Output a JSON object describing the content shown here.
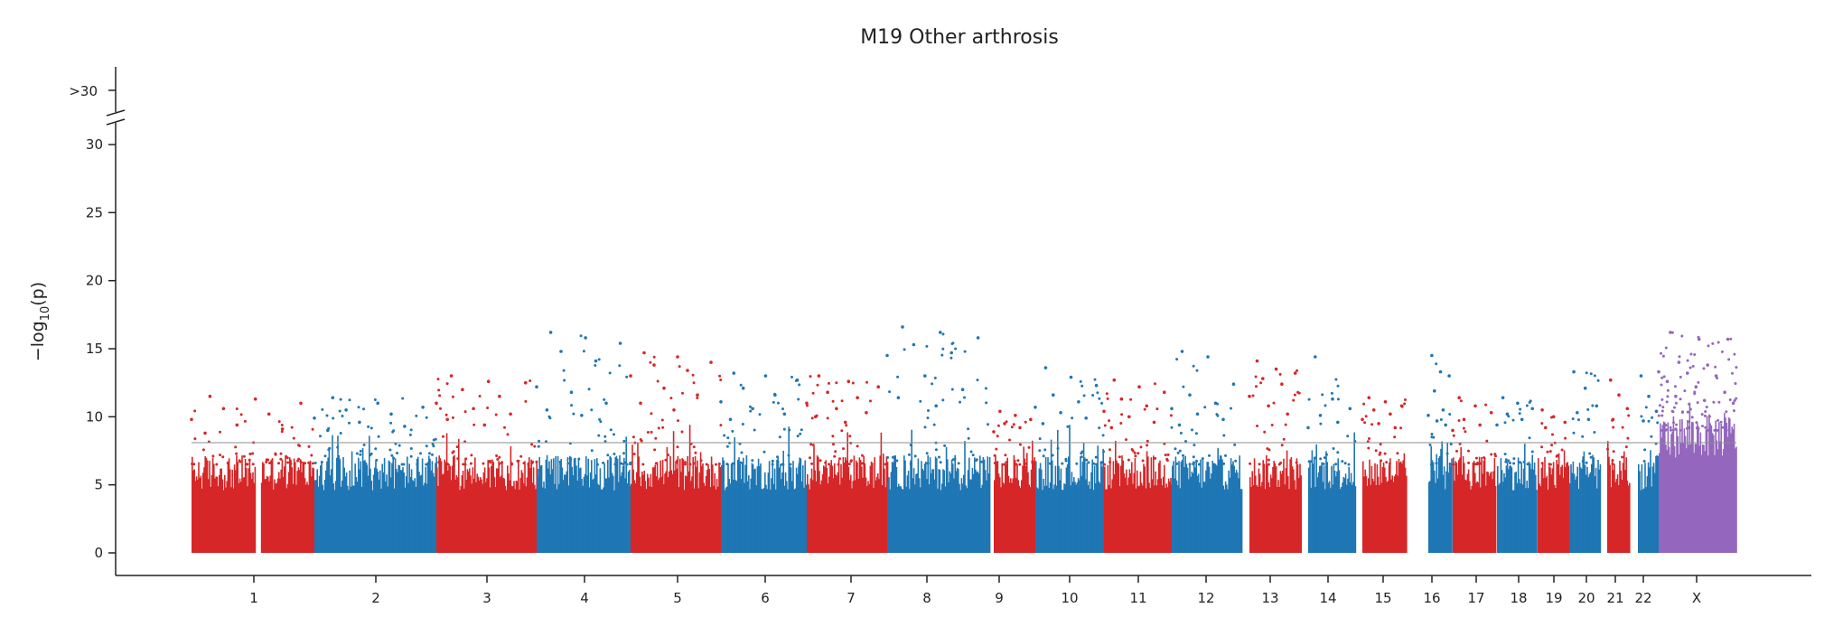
{
  "chart_data": {
    "type": "scatter",
    "subtype": "manhattan",
    "title": "M19 Other arthrosis",
    "xlabel": "",
    "ylabel_main": "−log",
    "ylabel_sub": "10",
    "ylabel_end": "(p)",
    "ylim": [
      0,
      30
    ],
    "yticks": [
      "0",
      "5",
      "10",
      "15",
      "20",
      "25",
      "30"
    ],
    "broken_axis_label": ">30",
    "significance_threshold": 7.3,
    "colors": {
      "odd": "#d62728",
      "even": "#1f77b4",
      "X": "#9467bd",
      "threshold": "#8c8c8c"
    },
    "chromosomes": [
      {
        "label": "1",
        "start": 0.0,
        "end": 4.1,
        "color": "#d62728",
        "peak": 11.5,
        "hits": [
          11.5,
          11.3,
          11.0,
          10.6,
          10.2,
          9.8,
          9.4,
          9.1,
          8.8
        ]
      },
      {
        "label": "2",
        "start": 4.5,
        "end": 8.0,
        "color": "#1f77b4",
        "peak": 11.4,
        "hits": [
          11.4,
          11.0,
          10.7,
          10.5,
          10.2,
          9.9,
          9.6,
          9.3,
          9.0
        ]
      },
      {
        "label": "3",
        "start": 8.0,
        "end": 14.4,
        "color": "#d62728",
        "peak": 13.0,
        "hits": [
          13.0,
          12.6,
          12.5,
          12.0,
          11.5,
          11.0,
          10.6,
          10.2,
          9.8,
          9.4
        ]
      },
      {
        "label": "4",
        "start": 14.4,
        "end": 20.5,
        "color": "#1f77b4",
        "peak": 16.2,
        "hits": [
          16.2,
          15.8,
          15.4,
          14.8,
          14.1,
          12.2,
          11.8,
          11.0,
          10.5,
          10.1
        ]
      },
      {
        "label": "5",
        "start": 20.5,
        "end": 26.4,
        "color": "#d62728",
        "peak": 14.7,
        "hits": [
          14.7,
          14.4,
          14.0,
          13.8,
          13.4,
          13.0,
          12.1,
          11.6,
          11.0,
          10.5
        ]
      },
      {
        "label": "6",
        "start": 26.4,
        "end": 32.0,
        "color": "#1f77b4",
        "peak": 13.2,
        "hits": [
          13.2,
          13.0,
          12.7,
          12.1,
          11.6,
          11.1,
          10.6,
          10.2,
          9.8
        ]
      },
      {
        "label": "7",
        "start": 32.0,
        "end": 37.2,
        "color": "#d62728",
        "peak": 13.0,
        "hits": [
          13.0,
          12.6,
          12.2,
          11.8,
          11.4,
          11.0,
          10.6,
          10.3,
          10.0,
          9.6
        ]
      },
      {
        "label": "8",
        "start": 37.2,
        "end": 47.0,
        "color": "#1f77b4",
        "peak": 16.6,
        "hits": [
          16.6,
          16.2,
          15.8,
          15.3,
          14.7,
          14.5,
          13.0,
          12.0,
          11.4,
          10.8
        ]
      },
      {
        "label": "9",
        "start": 47.0,
        "end": 47.0,
        "color": "#d62728",
        "peak": 10.4,
        "hits": [
          10.4,
          10.1,
          9.8,
          9.5,
          9.2,
          8.9
        ]
      },
      {
        "label": "10",
        "start": 47.0,
        "end": 47.0,
        "color": "#1f77b4",
        "peak": 13.6,
        "hits": [
          13.6,
          12.9,
          12.3,
          11.6,
          11.1,
          10.7,
          10.3,
          9.9,
          9.5
        ]
      },
      {
        "label": "11",
        "start": 47.0,
        "end": 47.0,
        "color": "#d62728",
        "peak": 12.7,
        "hits": [
          12.7,
          12.2,
          11.8,
          11.3,
          10.8,
          10.4,
          10.0,
          9.6,
          9.2
        ]
      },
      {
        "label": "12",
        "start": 47.0,
        "end": 47.0,
        "color": "#1f77b4",
        "peak": 14.8,
        "hits": [
          14.8,
          14.4,
          12.4,
          11.6,
          11.0,
          10.6,
          10.2,
          9.8,
          9.4
        ]
      },
      {
        "label": "13",
        "start": 47.0,
        "end": 47.0,
        "color": "#d62728",
        "peak": 14.1,
        "hits": [
          14.1,
          13.5,
          13.2,
          12.8,
          12.4,
          11.5,
          10.8,
          10.2
        ]
      },
      {
        "label": "14",
        "start": 47.0,
        "end": 47.0,
        "color": "#1f77b4",
        "peak": 14.4,
        "hits": [
          14.4,
          11.3,
          10.6,
          10.1,
          9.6,
          9.2
        ]
      },
      {
        "label": "15",
        "start": 47.0,
        "end": 47.0,
        "color": "#d62728",
        "peak": 11.4,
        "hits": [
          11.4,
          11.1,
          10.8,
          10.5,
          10.2,
          9.8,
          9.5,
          9.2
        ]
      },
      {
        "label": "16",
        "start": 47.0,
        "end": 47.0,
        "color": "#1f77b4",
        "peak": 14.5,
        "hits": [
          14.5,
          13.3,
          13.0,
          11.9,
          10.5,
          10.1,
          9.7,
          9.4
        ]
      },
      {
        "label": "17",
        "start": 47.0,
        "end": 47.0,
        "color": "#d62728",
        "peak": 11.4,
        "hits": [
          11.4,
          10.8,
          10.3,
          9.8,
          9.4,
          9.0
        ]
      },
      {
        "label": "18",
        "start": 47.0,
        "end": 47.0,
        "color": "#1f77b4",
        "peak": 11.4,
        "hits": [
          11.4,
          11.0,
          10.6,
          10.2,
          9.8,
          9.4
        ]
      },
      {
        "label": "19",
        "start": 47.0,
        "end": 47.0,
        "color": "#d62728",
        "peak": 10.5,
        "hits": [
          10.5,
          10.0,
          9.6,
          9.2
        ]
      },
      {
        "label": "20",
        "start": 47.0,
        "end": 47.0,
        "color": "#1f77b4",
        "peak": 13.3,
        "hits": [
          13.3,
          12.1,
          10.8,
          10.3,
          9.8
        ]
      },
      {
        "label": "21",
        "start": 47.0,
        "end": 47.0,
        "color": "#d62728",
        "peak": 12.7,
        "hits": [
          12.7,
          11.6,
          10.6,
          9.8
        ]
      },
      {
        "label": "22",
        "start": 47.0,
        "end": 47.0,
        "color": "#1f77b4",
        "peak": 13.0,
        "hits": [
          13.0,
          11.5,
          10.4,
          9.7
        ]
      },
      {
        "label": "X",
        "start": 47.0,
        "end": 47.0,
        "color": "#9467bd",
        "peak": 16.2,
        "hits": [
          16.2,
          15.7,
          15.7,
          14.0,
          13.8,
          13.3,
          13.2,
          13.0,
          12.6,
          12.2,
          11.8,
          11.5,
          11.2,
          11.0
        ]
      }
    ]
  }
}
